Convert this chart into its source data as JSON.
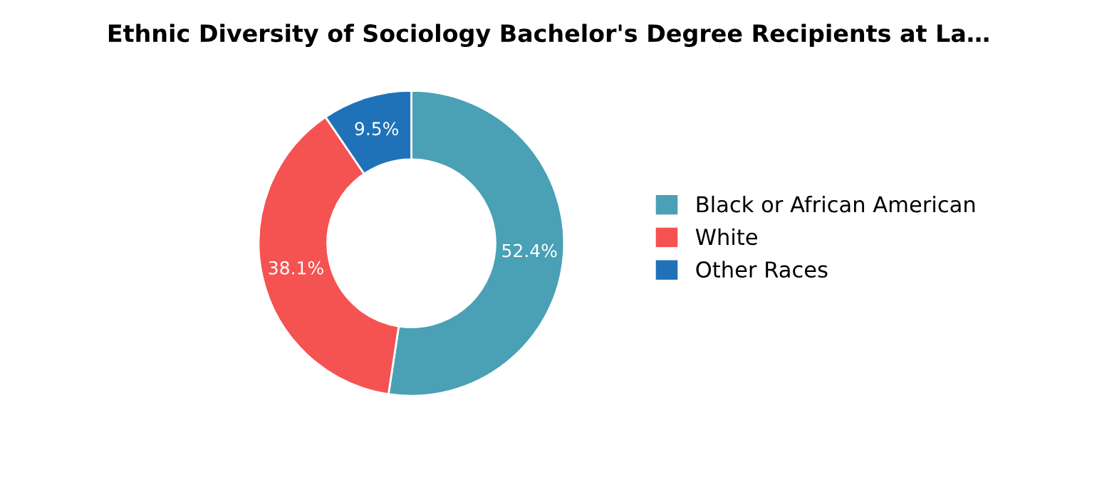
{
  "chart_data": {
    "type": "donut",
    "title": "Ethnic Diversity of Sociology Bachelor's Degree Recipients at La…",
    "categories": [
      "Black or African American",
      "White",
      "Other Races"
    ],
    "values": [
      52.4,
      38.1,
      9.5
    ],
    "colors": [
      "#4aa0b5",
      "#f55252",
      "#1f72b8"
    ],
    "value_labels": [
      "52.4%",
      "38.1%",
      "9.5%"
    ],
    "legend": "right"
  }
}
